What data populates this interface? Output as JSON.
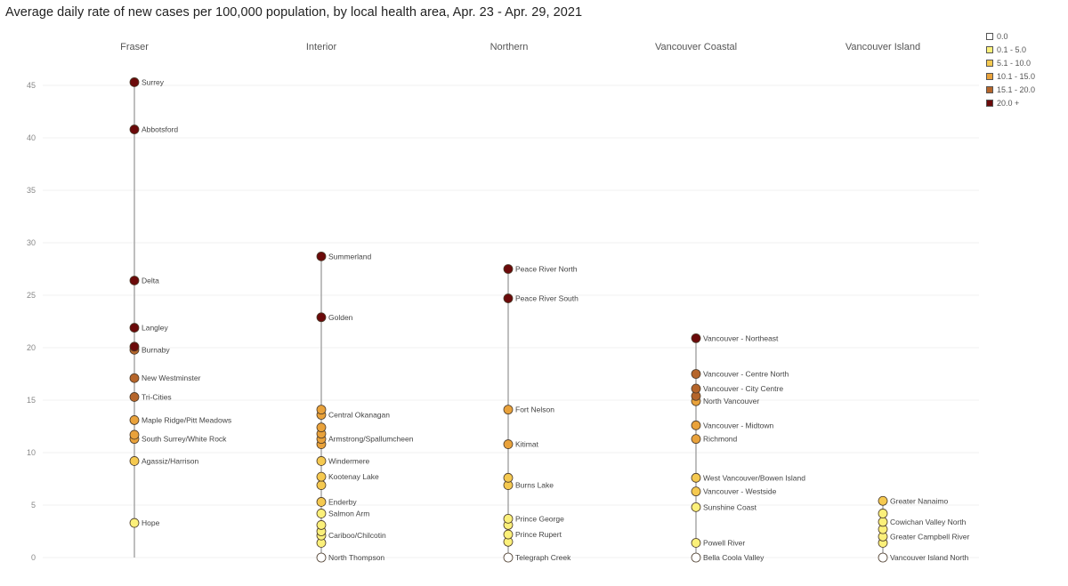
{
  "title": "Average daily rate of new cases per 100,000 population, by local health area, Apr. 23 - Apr. 29, 2021",
  "legend": {
    "items": [
      {
        "label": "0.0",
        "color": "#ffffff"
      },
      {
        "label": "0.1 - 5.0",
        "color": "#fbf07a"
      },
      {
        "label": "5.1 - 10.0",
        "color": "#f5c950"
      },
      {
        "label": "10.1 - 15.0",
        "color": "#e9a23b"
      },
      {
        "label": "15.1 - 20.0",
        "color": "#b5652a"
      },
      {
        "label": "20.0 +",
        "color": "#6b0a0a"
      }
    ]
  },
  "chart_data": {
    "type": "scatter",
    "title": "Average daily rate of new cases per 100,000 population, by local health area, Apr. 23 - Apr. 29, 2021",
    "xlabel": "",
    "ylabel": "",
    "ylim": [
      0,
      47
    ],
    "yticks": [
      0,
      5,
      10,
      15,
      20,
      25,
      30,
      35,
      40,
      45
    ],
    "grid": true,
    "legend_position": "top-right",
    "categories": [
      "Fraser",
      "Interior",
      "Northern",
      "Vancouver Coastal",
      "Vancouver Island"
    ],
    "series": [
      {
        "name": "Fraser",
        "points": [
          {
            "label": "Surrey",
            "value": 45.3
          },
          {
            "label": "Abbotsford",
            "value": 40.8
          },
          {
            "label": "Delta",
            "value": 26.4
          },
          {
            "label": "Langley",
            "value": 21.9
          },
          {
            "label": "",
            "value": 20.1
          },
          {
            "label": "Burnaby",
            "value": 19.8
          },
          {
            "label": "New Westminster",
            "value": 17.1
          },
          {
            "label": "Tri-Cities",
            "value": 15.3
          },
          {
            "label": "Maple Ridge/Pitt Meadows",
            "value": 13.1
          },
          {
            "label": "",
            "value": 11.7
          },
          {
            "label": "South Surrey/White Rock",
            "value": 11.3
          },
          {
            "label": "Agassiz/Harrison",
            "value": 9.2
          },
          {
            "label": "Hope",
            "value": 3.3
          }
        ]
      },
      {
        "name": "Interior",
        "points": [
          {
            "label": "Summerland",
            "value": 28.7
          },
          {
            "label": "Golden",
            "value": 22.9
          },
          {
            "label": "",
            "value": 14.1
          },
          {
            "label": "Central Okanagan",
            "value": 13.6
          },
          {
            "label": "",
            "value": 12.4
          },
          {
            "label": "",
            "value": 11.8
          },
          {
            "label": "Armstrong/Spallumcheen",
            "value": 11.3
          },
          {
            "label": "",
            "value": 10.8
          },
          {
            "label": "Windermere",
            "value": 9.2
          },
          {
            "label": "Kootenay Lake",
            "value": 7.7
          },
          {
            "label": "",
            "value": 6.9
          },
          {
            "label": "Enderby",
            "value": 5.3
          },
          {
            "label": "Salmon Arm",
            "value": 4.2
          },
          {
            "label": "",
            "value": 3.1
          },
          {
            "label": "",
            "value": 2.5
          },
          {
            "label": "Cariboo/Chilcotin",
            "value": 2.1
          },
          {
            "label": "",
            "value": 1.4
          },
          {
            "label": "North Thompson",
            "value": 0.0
          }
        ]
      },
      {
        "name": "Northern",
        "points": [
          {
            "label": "Peace River North",
            "value": 27.5
          },
          {
            "label": "Peace River South",
            "value": 24.7
          },
          {
            "label": "Fort Nelson",
            "value": 14.1
          },
          {
            "label": "Kitimat",
            "value": 10.8
          },
          {
            "label": "",
            "value": 7.6
          },
          {
            "label": "Burns Lake",
            "value": 6.9
          },
          {
            "label": "Prince George",
            "value": 3.7
          },
          {
            "label": "",
            "value": 3.1
          },
          {
            "label": "Prince Rupert",
            "value": 2.2
          },
          {
            "label": "",
            "value": 1.5
          },
          {
            "label": "Telegraph Creek",
            "value": 0.0
          }
        ]
      },
      {
        "name": "Vancouver Coastal",
        "points": [
          {
            "label": "Vancouver - Northeast",
            "value": 20.9
          },
          {
            "label": "Vancouver - Centre North",
            "value": 17.5
          },
          {
            "label": "Vancouver - City Centre",
            "value": 16.1
          },
          {
            "label": "",
            "value": 15.4
          },
          {
            "label": "North Vancouver",
            "value": 14.9
          },
          {
            "label": "Vancouver - Midtown",
            "value": 12.6
          },
          {
            "label": "Richmond",
            "value": 11.3
          },
          {
            "label": "West Vancouver/Bowen Island",
            "value": 7.6
          },
          {
            "label": "Vancouver - Westside",
            "value": 6.3
          },
          {
            "label": "Sunshine Coast",
            "value": 4.8
          },
          {
            "label": "Powell River",
            "value": 1.4
          },
          {
            "label": "Bella Coola Valley",
            "value": 0.0
          }
        ]
      },
      {
        "name": "Vancouver Island",
        "points": [
          {
            "label": "Greater Nanaimo",
            "value": 5.4
          },
          {
            "label": "",
            "value": 4.2
          },
          {
            "label": "Cowichan Valley North",
            "value": 3.4
          },
          {
            "label": "",
            "value": 2.7
          },
          {
            "label": "Greater Campbell River",
            "value": 2.0
          },
          {
            "label": "",
            "value": 1.4
          },
          {
            "label": "Vancouver Island North",
            "value": 0.0
          }
        ]
      }
    ]
  }
}
